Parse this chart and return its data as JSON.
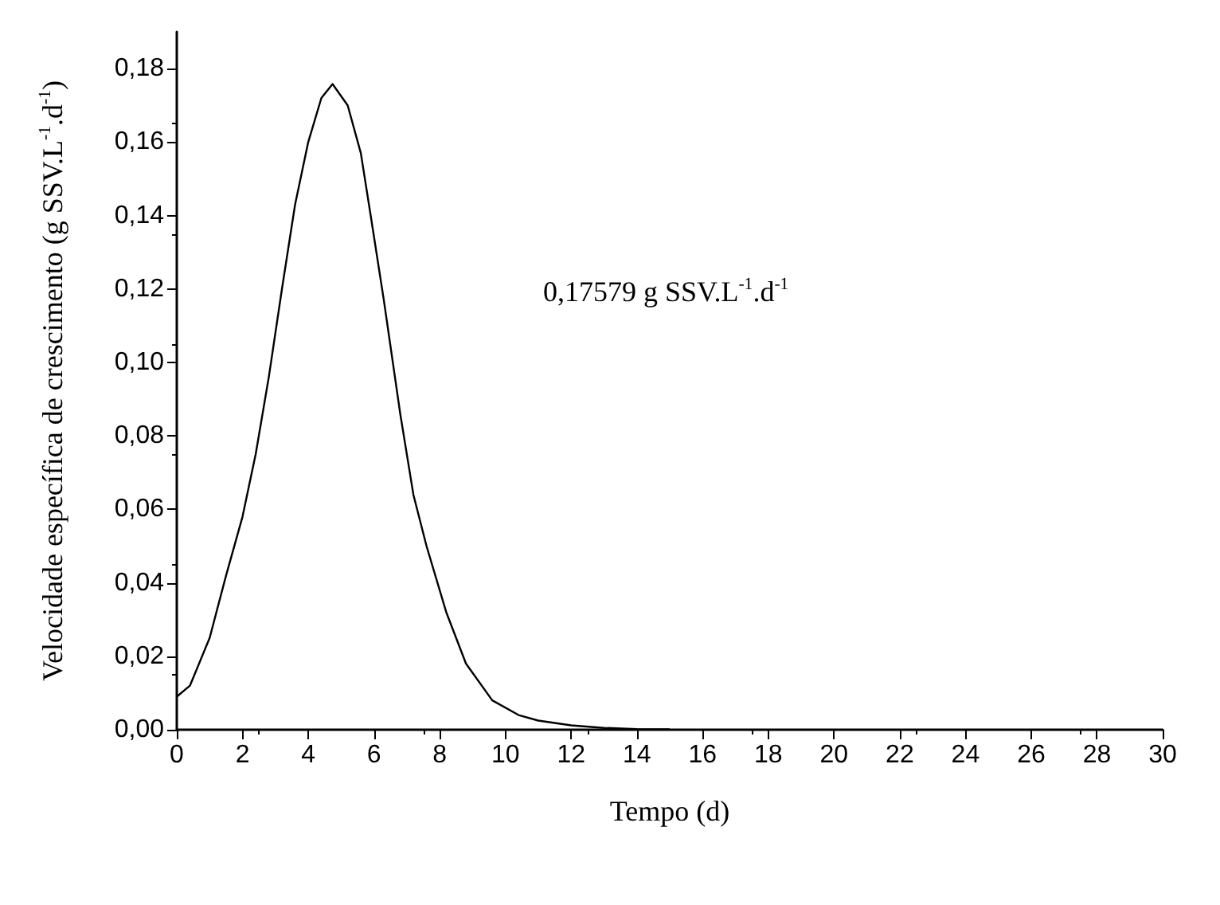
{
  "chart_data": {
    "type": "line",
    "xlabel": "Tempo (d)",
    "ylabel": "Velocidade específica de crescimento (g SSV.L$^{-1}$.d$^{-1}$)",
    "annotations": [
      "0,17579 g SSV.L$^{-1}$.d$^{-1}$"
    ],
    "x": [
      0,
      0.4,
      1,
      1.5,
      2,
      2.4,
      2.8,
      3.2,
      3.6,
      4,
      4.4,
      4.74,
      5.2,
      5.6,
      5.9,
      6.3,
      6.8,
      7.2,
      7.6,
      8.2,
      8.8,
      9.6,
      10.4,
      11,
      12,
      13,
      14,
      15
    ],
    "series": [
      {
        "color": "#000000",
        "values": [
          0.009,
          0.012,
          0.025,
          0.042,
          0.058,
          0.075,
          0.096,
          0.12,
          0.143,
          0.16,
          0.172,
          0.1758,
          0.17,
          0.157,
          0.14,
          0.117,
          0.086,
          0.064,
          0.05,
          0.032,
          0.018,
          0.008,
          0.004,
          0.0025,
          0.0012,
          0.0005,
          0.0002,
          0.0001
        ]
      }
    ],
    "xlim": [
      0,
      30
    ],
    "xticks": [
      0,
      2,
      4,
      6,
      8,
      10,
      12,
      14,
      16,
      18,
      20,
      22,
      24,
      26,
      28,
      30
    ],
    "ylim": [
      0,
      0.19
    ],
    "yticks": [
      {
        "value": 0,
        "label": "0,00"
      },
      {
        "value": 0.02,
        "label": "0,02"
      },
      {
        "value": 0.04,
        "label": "0,04"
      },
      {
        "value": 0.06,
        "label": "0,06"
      },
      {
        "value": 0.08,
        "label": "0,08"
      },
      {
        "value": 0.1,
        "label": "0,10"
      },
      {
        "value": 0.12,
        "label": "0,12"
      },
      {
        "value": 0.14,
        "label": "0,14"
      },
      {
        "value": 0.16,
        "label": "0,16"
      },
      {
        "value": 0.18,
        "label": "0,18"
      }
    ],
    "marker": "none",
    "line_style": "solid"
  }
}
